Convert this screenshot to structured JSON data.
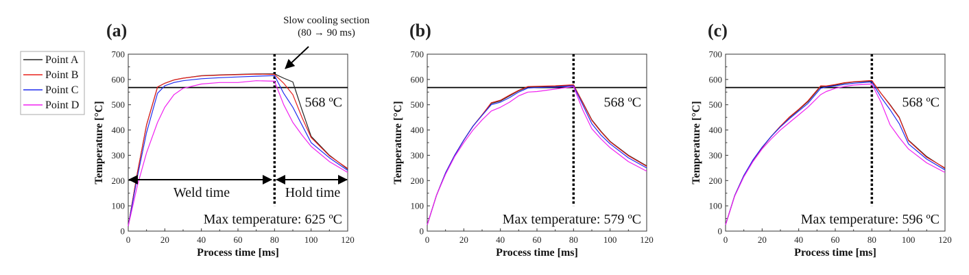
{
  "legend": {
    "items": [
      {
        "label": "Point A",
        "color": "#222222"
      },
      {
        "label": "Point B",
        "color": "#e8201c"
      },
      {
        "label": "Point C",
        "color": "#1f2bef"
      },
      {
        "label": "Point D",
        "color": "#f020f0"
      }
    ]
  },
  "annotations": {
    "slow_cooling_line1": "Slow cooling section",
    "slow_cooling_line2": "(80 → 90 ms)",
    "weld_time": "Weld time",
    "hold_time": "Hold time"
  },
  "chart_data": [
    {
      "type": "line",
      "panel_label": "(a)",
      "xlabel": "Process time [ms]",
      "ylabel": "Temperature [°C]",
      "xlim": [
        0,
        120
      ],
      "ylim": [
        0,
        700
      ],
      "xticks": [
        0,
        20,
        40,
        60,
        80,
        100,
        120
      ],
      "yticks": [
        0,
        100,
        200,
        300,
        400,
        500,
        600,
        700
      ],
      "threshold": {
        "value": 568,
        "label": "568 ºC"
      },
      "vline": 80,
      "max_label": "Max temperature:  625 ºC",
      "x": [
        0,
        5,
        10,
        16,
        20,
        25,
        30,
        40,
        50,
        60,
        70,
        80,
        85,
        90,
        95,
        100,
        110,
        120
      ],
      "series": [
        {
          "name": "Point A",
          "values": [
            20,
            230,
            420,
            570,
            585,
            598,
            605,
            615,
            618,
            620,
            622,
            622,
            605,
            590,
            480,
            375,
            300,
            245
          ]
        },
        {
          "name": "Point B",
          "values": [
            20,
            230,
            420,
            570,
            585,
            598,
            605,
            614,
            617,
            619,
            621,
            620,
            585,
            540,
            450,
            370,
            298,
            248
          ]
        },
        {
          "name": "Point C",
          "values": [
            20,
            215,
            390,
            545,
            575,
            588,
            595,
            603,
            607,
            610,
            613,
            615,
            545,
            490,
            420,
            350,
            290,
            240
          ]
        },
        {
          "name": "Point D",
          "values": [
            20,
            180,
            310,
            430,
            490,
            540,
            565,
            582,
            588,
            588,
            595,
            593,
            500,
            430,
            380,
            335,
            275,
            232
          ]
        }
      ]
    },
    {
      "type": "line",
      "panel_label": "(b)",
      "xlabel": "Process time [ms]",
      "ylabel": "Temperature [°C]",
      "xlim": [
        0,
        120
      ],
      "ylim": [
        0,
        700
      ],
      "xticks": [
        0,
        20,
        40,
        60,
        80,
        100,
        120
      ],
      "yticks": [
        0,
        100,
        200,
        300,
        400,
        500,
        600,
        700
      ],
      "threshold": {
        "value": 568,
        "label": "568 ºC"
      },
      "vline": 80,
      "max_label": "Max temperature:  579 ºC",
      "x": [
        0,
        5,
        10,
        15,
        20,
        25,
        30,
        35,
        40,
        45,
        50,
        55,
        60,
        70,
        80,
        85,
        90,
        95,
        100,
        110,
        120
      ],
      "series": [
        {
          "name": "Point A",
          "values": [
            25,
            140,
            230,
            300,
            360,
            415,
            460,
            505,
            515,
            535,
            555,
            570,
            570,
            572,
            578,
            510,
            440,
            395,
            355,
            300,
            258
          ]
        },
        {
          "name": "Point B",
          "values": [
            25,
            140,
            230,
            300,
            360,
            415,
            460,
            508,
            518,
            538,
            557,
            572,
            573,
            575,
            579,
            508,
            438,
            393,
            353,
            298,
            256
          ]
        },
        {
          "name": "Point C",
          "values": [
            25,
            140,
            230,
            300,
            360,
            415,
            458,
            500,
            510,
            528,
            550,
            566,
            568,
            570,
            575,
            500,
            425,
            380,
            345,
            290,
            250
          ]
        },
        {
          "name": "Point D",
          "values": [
            25,
            140,
            225,
            295,
            350,
            400,
            440,
            475,
            490,
            510,
            535,
            550,
            552,
            562,
            572,
            480,
            405,
            365,
            330,
            275,
            237
          ]
        }
      ]
    },
    {
      "type": "line",
      "panel_label": "(c)",
      "xlabel": "Process time [ms]",
      "ylabel": "Temperature [°C]",
      "xlim": [
        0,
        120
      ],
      "ylim": [
        0,
        700
      ],
      "xticks": [
        0,
        20,
        40,
        60,
        80,
        100,
        120
      ],
      "yticks": [
        0,
        100,
        200,
        300,
        400,
        500,
        600,
        700
      ],
      "threshold": {
        "value": 568,
        "label": "568 ºC"
      },
      "vline": 80,
      "max_label": "Max temperature:  596 ºC",
      "x": [
        0,
        5,
        10,
        15,
        20,
        25,
        30,
        35,
        40,
        45,
        52,
        55,
        60,
        65,
        70,
        80,
        85,
        90,
        95,
        100,
        110,
        120
      ],
      "series": [
        {
          "name": "Point A",
          "values": [
            25,
            140,
            220,
            280,
            330,
            375,
            415,
            450,
            480,
            512,
            572,
            572,
            578,
            585,
            590,
            594,
            545,
            500,
            450,
            360,
            295,
            248
          ]
        },
        {
          "name": "Point B",
          "values": [
            25,
            140,
            220,
            280,
            330,
            375,
            415,
            452,
            482,
            515,
            575,
            574,
            580,
            587,
            591,
            596,
            545,
            498,
            448,
            358,
            292,
            250
          ]
        },
        {
          "name": "Point C",
          "values": [
            25,
            140,
            220,
            282,
            332,
            375,
            412,
            445,
            475,
            505,
            565,
            570,
            575,
            580,
            585,
            590,
            530,
            480,
            425,
            345,
            285,
            242
          ]
        },
        {
          "name": "Point D",
          "values": [
            25,
            138,
            215,
            275,
            325,
            365,
            400,
            430,
            460,
            490,
            540,
            552,
            565,
            572,
            578,
            582,
            510,
            420,
            370,
            325,
            270,
            232
          ]
        }
      ]
    }
  ]
}
